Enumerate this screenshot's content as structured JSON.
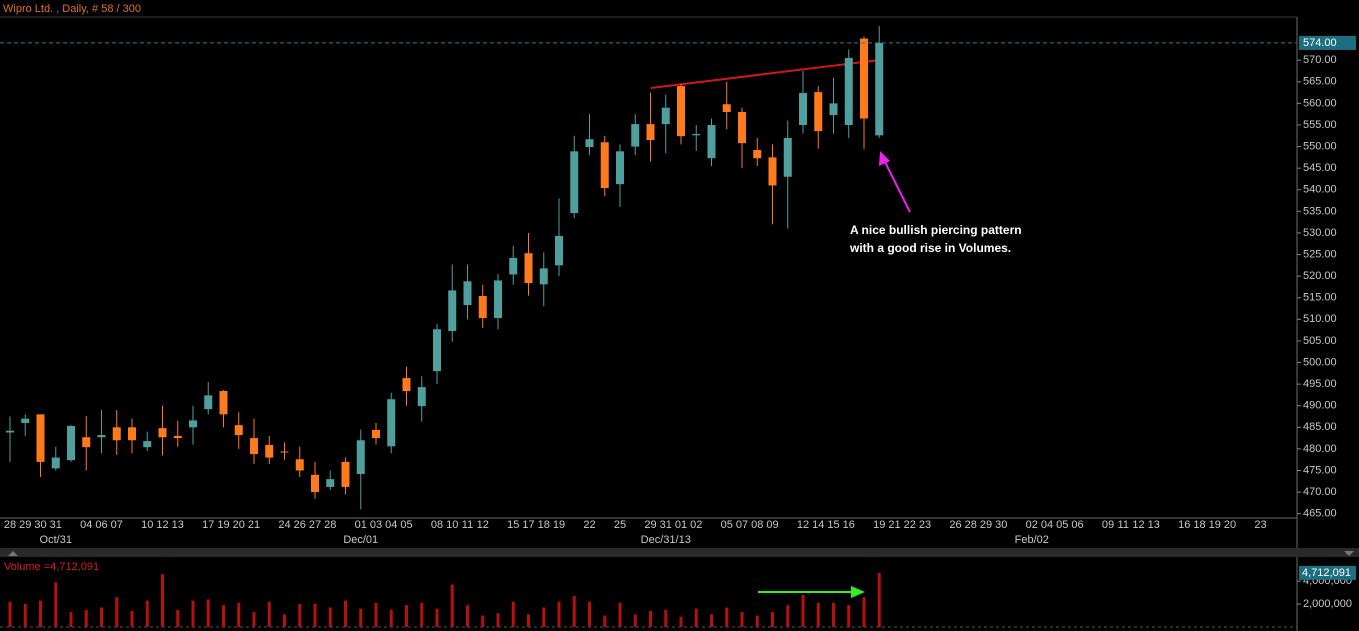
{
  "chart_data": [
    {
      "type": "candlestick",
      "title": "Wipro Ltd. , Daily, # 58 / 300",
      "categories": [
        "28",
        "29",
        "30",
        "31",
        null,
        "04",
        "06",
        "07",
        null,
        "10",
        "12",
        "13",
        null,
        "17",
        "19",
        "20",
        "21",
        null,
        "24",
        "26",
        "27",
        "28",
        null,
        "01",
        "03",
        "04",
        "05",
        null,
        "08",
        "10",
        "11",
        "12",
        null,
        "15",
        "17",
        "18",
        "19",
        null,
        "22",
        null,
        "25",
        null,
        "29",
        "31",
        "01",
        "02",
        null,
        "05",
        "07",
        "08",
        "09",
        null,
        "12",
        "14",
        "15",
        "16",
        null,
        "19",
        "21",
        "22",
        "23",
        null,
        "26",
        "28",
        "29",
        "30",
        null,
        "02",
        "04",
        "05",
        "06",
        null,
        "09",
        "11",
        "12",
        "13",
        null,
        "16",
        "18",
        "19",
        "20",
        null,
        "23"
      ],
      "period_labels": [
        null,
        null,
        null,
        "Oct/31",
        null,
        null,
        null,
        null,
        null,
        null,
        null,
        null,
        null,
        null,
        null,
        null,
        null,
        null,
        null,
        null,
        null,
        null,
        null,
        "Dec/01",
        null,
        null,
        null,
        null,
        null,
        null,
        null,
        null,
        null,
        null,
        null,
        null,
        null,
        null,
        null,
        null,
        null,
        null,
        null,
        "Dec/31/13",
        null,
        null,
        null,
        null,
        null,
        null,
        null,
        null,
        null,
        null,
        null,
        null,
        null,
        null,
        null,
        null,
        null,
        null,
        null,
        null,
        null,
        null,
        null,
        "Feb/02",
        null,
        null,
        null,
        null,
        null,
        null,
        null,
        null,
        null,
        null,
        null,
        null,
        null,
        null,
        null
      ],
      "open": [
        483.8,
        486,
        488,
        475.5,
        477.4,
        482.7,
        482.7,
        485,
        485,
        480.4,
        484.8,
        483,
        485,
        489.2,
        493.4,
        485.5,
        482.5,
        480.9,
        479.4,
        477.6,
        474,
        471.2,
        477,
        474.2,
        484.4,
        480.6,
        496.4,
        489.9,
        498,
        507.3,
        513.3,
        515.4,
        510.3,
        520.4,
        525.3,
        518.1,
        522.5,
        534.6,
        549.9,
        551,
        541.3,
        550,
        555.2,
        555.2,
        564,
        552.6,
        547.3,
        559.8,
        558,
        549.2,
        547.5,
        543,
        555,
        562.6,
        557.3,
        555,
        575,
        552.6,
        null,
        null,
        null,
        null,
        null,
        null,
        null,
        null,
        null,
        null,
        null,
        null,
        null,
        null,
        null,
        null,
        null,
        null,
        null,
        null,
        null,
        null,
        null,
        null,
        null
      ],
      "high": [
        487.5,
        488,
        488,
        480.5,
        485.5,
        487.6,
        489,
        489,
        487,
        484,
        490,
        486.5,
        490,
        495.5,
        493.6,
        488.5,
        487,
        483,
        481.5,
        480.5,
        477,
        475,
        478,
        484.5,
        486,
        493,
        499,
        496.8,
        509,
        522.7,
        522.7,
        518,
        520.5,
        527,
        530,
        525.5,
        538,
        552.5,
        557.5,
        552.5,
        550.5,
        557.5,
        562.5,
        562,
        564.5,
        555,
        556.5,
        565,
        559,
        552,
        550.5,
        556,
        567.5,
        564,
        566,
        572.5,
        575.5,
        577.9,
        null,
        null,
        null,
        null,
        null,
        null,
        null,
        null,
        null,
        null,
        null,
        null,
        null,
        null,
        null,
        null,
        null,
        null,
        null,
        null,
        null,
        null,
        null,
        null,
        null
      ],
      "low": [
        477,
        483,
        473.5,
        475,
        477,
        475,
        479,
        478.6,
        479,
        479.5,
        478.5,
        480.5,
        481,
        488,
        485,
        480,
        476.5,
        476.5,
        477.5,
        473.5,
        468.5,
        470.5,
        469.5,
        466,
        481,
        479,
        490,
        486.3,
        495,
        504.8,
        510,
        508,
        507.7,
        518,
        515.5,
        513,
        520,
        533.5,
        548,
        538.5,
        536,
        548,
        546.5,
        548.5,
        550.5,
        549,
        545.5,
        554,
        545,
        545.5,
        532,
        531,
        553,
        549.5,
        553,
        552,
        549.5,
        552,
        null,
        null,
        null,
        null,
        null,
        null,
        null,
        null,
        null,
        null,
        null,
        null,
        null,
        null,
        null,
        null,
        null,
        null,
        null,
        null,
        null,
        null,
        null,
        null,
        null
      ],
      "close": [
        484.2,
        487,
        477,
        478,
        485.3,
        480.4,
        483.2,
        482,
        482,
        481.8,
        482.7,
        482.5,
        486.6,
        492.4,
        488,
        483.2,
        478.8,
        478,
        479.2,
        475,
        470,
        473,
        471.2,
        482,
        482.5,
        491.5,
        493.4,
        494.3,
        507.7,
        516.7,
        518.8,
        510.3,
        519,
        524.2,
        518.4,
        521.8,
        529.3,
        548.9,
        551.7,
        540.4,
        548.9,
        555.2,
        551.5,
        559,
        552.4,
        552.9,
        555,
        558,
        550.8,
        547.3,
        541,
        552,
        562.4,
        553.6,
        560,
        570.5,
        556.5,
        574,
        null,
        null,
        null,
        null,
        null,
        null,
        null,
        null,
        null,
        null,
        null,
        null,
        null,
        null,
        null,
        null,
        null,
        null,
        null,
        null,
        null,
        null,
        null,
        null,
        null
      ],
      "up_color": "#4f9f9f",
      "down_color": "#ff7a1c",
      "ylim": [
        464,
        580
      ],
      "yticks": [
        {
          "value": 465,
          "label": "465.00"
        },
        {
          "value": 470,
          "label": "470.00"
        },
        {
          "value": 475,
          "label": "475.00"
        },
        {
          "value": 480,
          "label": "480.00"
        },
        {
          "value": 485,
          "label": "485.00"
        },
        {
          "value": 490,
          "label": "490.00"
        },
        {
          "value": 495,
          "label": "495.00"
        },
        {
          "value": 500,
          "label": "500.00"
        },
        {
          "value": 505,
          "label": "505.00"
        },
        {
          "value": 510,
          "label": "510.00"
        },
        {
          "value": 515,
          "label": "515.00"
        },
        {
          "value": 520,
          "label": "520.00"
        },
        {
          "value": 525,
          "label": "525.00"
        },
        {
          "value": 530,
          "label": "530.00"
        },
        {
          "value": 535,
          "label": "535.00"
        },
        {
          "value": 540,
          "label": "540.00"
        },
        {
          "value": 545,
          "label": "545.00"
        },
        {
          "value": 550,
          "label": "550.00"
        },
        {
          "value": 555,
          "label": "555.00"
        },
        {
          "value": 560,
          "label": "560.00"
        },
        {
          "value": 565,
          "label": "565.00"
        },
        {
          "value": 570,
          "label": "570.00"
        }
      ],
      "last_label": "574.00",
      "annotation": [
        "A nice bullish piercing pattern",
        "with a good rise in Volumes."
      ]
    },
    {
      "type": "bar",
      "title": "Volume =4,712,091",
      "values": [
        2200000,
        2000000,
        2300000,
        3900000,
        1300000,
        1500000,
        1700000,
        2600000,
        1400000,
        2300000,
        4600000,
        1500000,
        2300000,
        2400000,
        1900000,
        2100000,
        1300000,
        2200000,
        1100000,
        2000000,
        2000000,
        1700000,
        2300000,
        1600000,
        2100000,
        1500000,
        1900000,
        2100000,
        1600000,
        3700000,
        1900000,
        1000000,
        1200000,
        2200000,
        1100000,
        1700000,
        2200000,
        2700000,
        2200000,
        1000000,
        2100000,
        1100000,
        1400000,
        1500000,
        900000,
        1600000,
        1100000,
        1700000,
        1300000,
        1000000,
        1300000,
        1900000,
        2800000,
        2100000,
        2100000,
        1900000,
        2600000,
        4712091,
        null,
        null,
        null,
        null,
        null,
        null,
        null,
        null,
        null,
        null,
        null,
        null,
        null,
        null,
        null,
        null,
        null,
        null,
        null,
        null,
        null,
        null,
        null,
        null,
        null
      ],
      "color": "#b80f0f",
      "ylim": [
        0,
        5400000
      ],
      "yticks": [
        {
          "value": 2000000,
          "label": "2,000,000"
        },
        {
          "value": 4000000,
          "label": "4,000,000"
        }
      ],
      "last_label": "4,712,091"
    }
  ]
}
